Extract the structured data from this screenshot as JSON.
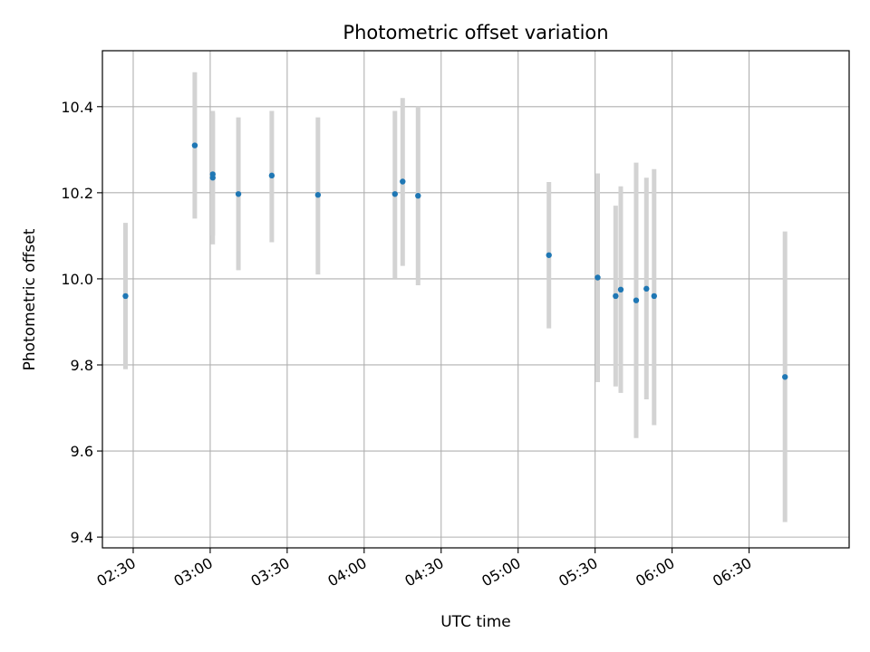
{
  "chart_data": {
    "type": "scatter",
    "title": "Photometric offset variation",
    "xlabel": "UTC time",
    "ylabel": "Photometric offset",
    "x_axis": {
      "kind": "time",
      "range": [
        "02:18",
        "07:09"
      ],
      "ticks": [
        "02:30",
        "03:00",
        "03:30",
        "04:00",
        "04:30",
        "05:00",
        "05:30",
        "06:00",
        "06:30"
      ]
    },
    "y_axis": {
      "range": [
        9.375,
        10.53
      ],
      "ticks": [
        9.4,
        9.6,
        9.8,
        10.0,
        10.2,
        10.4
      ],
      "tick_labels": [
        "9.4",
        "9.6",
        "9.8",
        "10.0",
        "10.2",
        "10.4"
      ]
    },
    "grid": true,
    "colors": {
      "point": "#1f77b4",
      "errorbar": "#d3d3d3",
      "grid": "#b0b0b0"
    },
    "points": [
      {
        "time": "02:27",
        "y": 9.96,
        "ylo": 9.79,
        "yhi": 10.13
      },
      {
        "time": "02:54",
        "y": 10.31,
        "ylo": 10.14,
        "yhi": 10.48
      },
      {
        "time": "03:01",
        "y": 10.235,
        "ylo": 10.08,
        "yhi": 10.39
      },
      {
        "time": "03:01",
        "y": 10.243,
        "ylo": 10.1,
        "yhi": 10.385
      },
      {
        "time": "03:11",
        "y": 10.197,
        "ylo": 10.02,
        "yhi": 10.375
      },
      {
        "time": "03:24",
        "y": 10.24,
        "ylo": 10.085,
        "yhi": 10.39
      },
      {
        "time": "03:42",
        "y": 10.195,
        "ylo": 10.01,
        "yhi": 10.375
      },
      {
        "time": "04:12",
        "y": 10.197,
        "ylo": 10.0,
        "yhi": 10.39
      },
      {
        "time": "04:15",
        "y": 10.226,
        "ylo": 10.03,
        "yhi": 10.42
      },
      {
        "time": "04:21",
        "y": 10.193,
        "ylo": 9.985,
        "yhi": 10.4
      },
      {
        "time": "05:12",
        "y": 10.055,
        "ylo": 9.885,
        "yhi": 10.225
      },
      {
        "time": "05:31",
        "y": 10.003,
        "ylo": 9.76,
        "yhi": 10.245
      },
      {
        "time": "05:38",
        "y": 9.96,
        "ylo": 9.75,
        "yhi": 10.17
      },
      {
        "time": "05:40",
        "y": 9.975,
        "ylo": 9.735,
        "yhi": 10.215
      },
      {
        "time": "05:46",
        "y": 9.95,
        "ylo": 9.63,
        "yhi": 10.27
      },
      {
        "time": "05:50",
        "y": 9.977,
        "ylo": 9.72,
        "yhi": 10.235
      },
      {
        "time": "05:53",
        "y": 9.96,
        "ylo": 9.66,
        "yhi": 10.255
      },
      {
        "time": "06:44",
        "y": 9.772,
        "ylo": 9.435,
        "yhi": 10.11
      }
    ]
  }
}
